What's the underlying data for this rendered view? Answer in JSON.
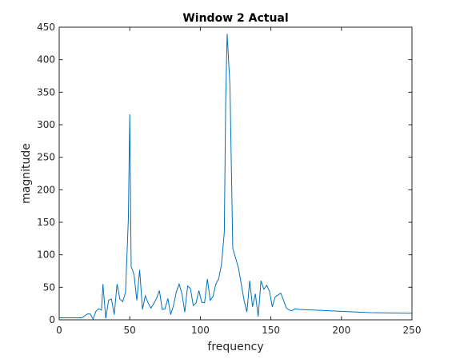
{
  "chart_data": {
    "type": "line",
    "title": "Window 2 Actual",
    "xlabel": "frequency",
    "ylabel": "magnitude",
    "xlim": [
      0,
      250
    ],
    "ylim": [
      0,
      450
    ],
    "xticks": [
      0,
      50,
      100,
      150,
      200,
      250
    ],
    "yticks": [
      0,
      50,
      100,
      150,
      200,
      250,
      300,
      350,
      400,
      450
    ],
    "grid": false,
    "legend": "none",
    "series": [
      {
        "color": "#0072BD",
        "x": [
          0,
          3,
          7,
          12,
          16,
          18,
          20,
          22,
          24,
          26,
          28,
          30,
          31,
          33,
          35,
          37,
          39,
          41,
          43,
          45,
          47,
          49,
          50,
          51,
          53,
          55,
          57,
          59,
          61,
          63,
          65,
          67,
          69,
          71,
          73,
          75,
          77,
          79,
          81,
          83,
          85,
          87,
          89,
          91,
          93,
          95,
          97,
          99,
          101,
          103,
          105,
          107,
          109,
          111,
          113,
          115,
          117,
          118,
          119,
          121,
          123,
          125,
          127,
          129,
          131,
          133,
          135,
          137,
          139,
          141,
          143,
          145,
          147,
          149,
          151,
          153,
          155,
          157,
          159,
          161,
          163,
          165,
          167,
          170,
          180,
          200,
          220,
          250
        ],
        "y": [
          3,
          3,
          3,
          3,
          3,
          6,
          9,
          9,
          1,
          13,
          17,
          15,
          55,
          2,
          30,
          32,
          8,
          55,
          32,
          28,
          42,
          155,
          316,
          82,
          70,
          30,
          77,
          16,
          37,
          26,
          18,
          25,
          33,
          45,
          16,
          17,
          33,
          8,
          22,
          43,
          55,
          40,
          12,
          52,
          48,
          22,
          26,
          45,
          27,
          26,
          63,
          30,
          36,
          55,
          63,
          85,
          135,
          340,
          440,
          360,
          110,
          95,
          80,
          55,
          30,
          12,
          60,
          20,
          40,
          5,
          60,
          47,
          53,
          44,
          20,
          35,
          38,
          41,
          30,
          18,
          15,
          14,
          17,
          16,
          15,
          13,
          11,
          10
        ]
      }
    ]
  }
}
